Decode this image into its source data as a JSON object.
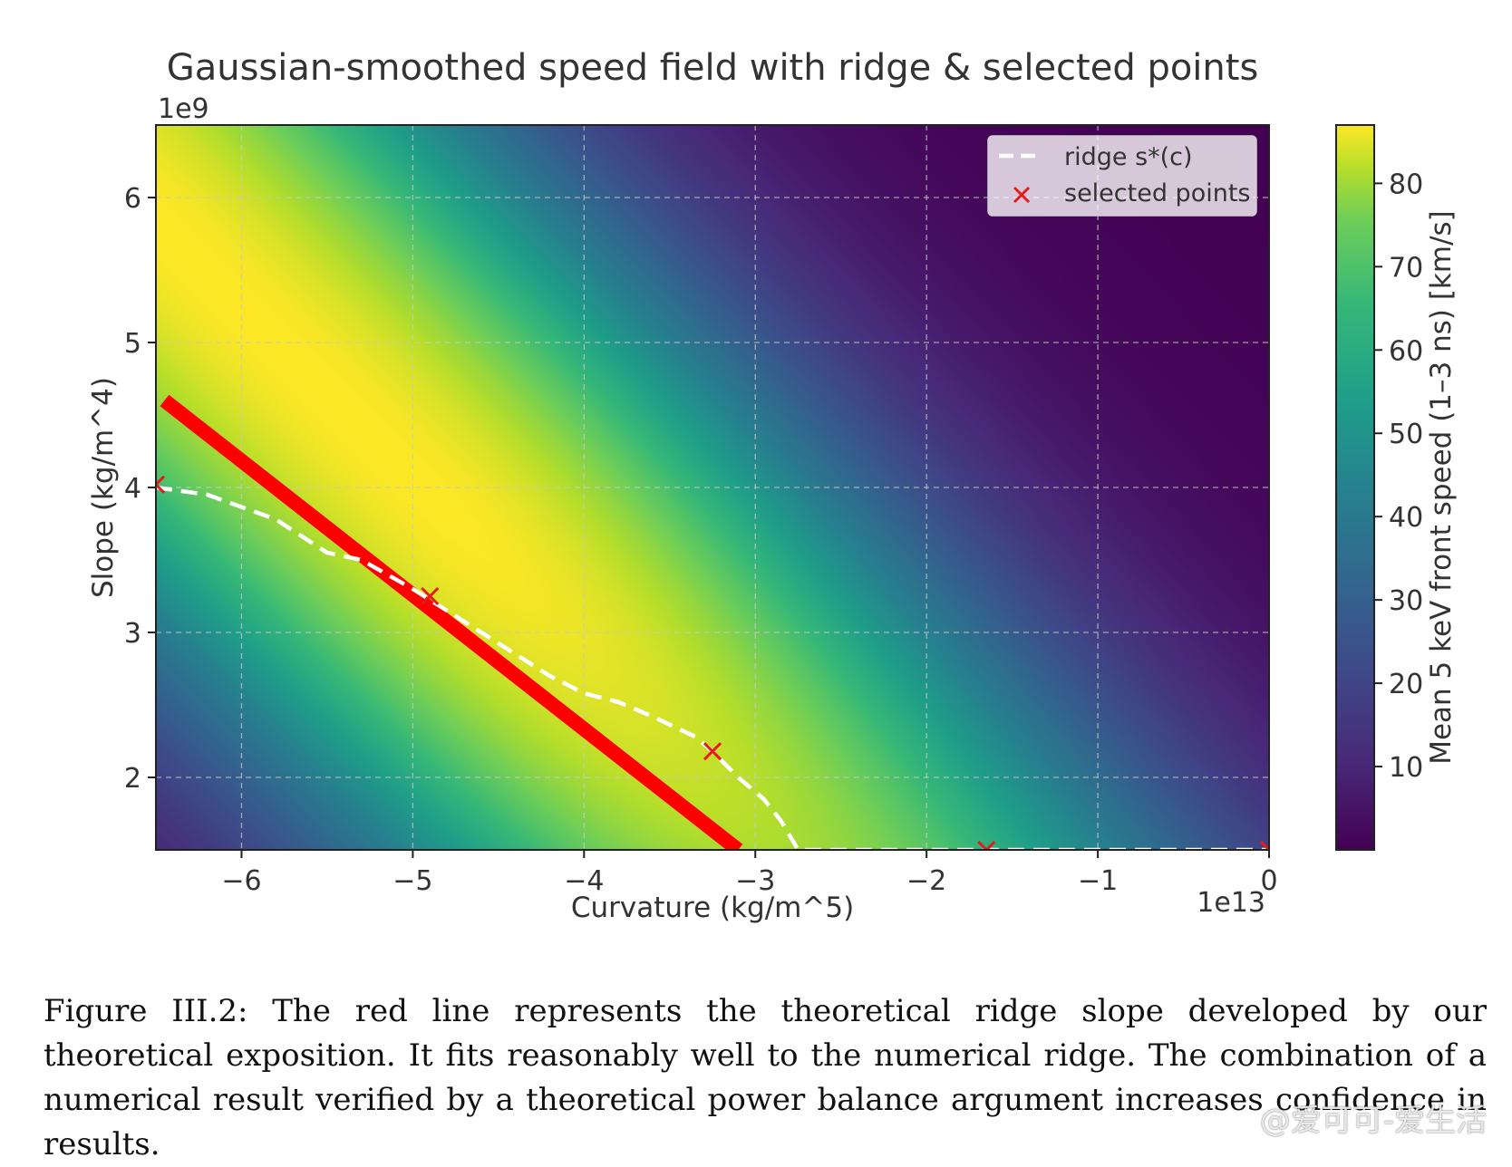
{
  "chart_data": {
    "type": "heatmap",
    "title": "Gaussian-smoothed speed field with ridge & selected points",
    "xlabel": "Curvature (kg/m^5)",
    "ylabel": "Slope (kg/m^4)",
    "x_multiplier": "1e13",
    "y_multiplier": "1e9",
    "xlim": [
      -6.5,
      0
    ],
    "ylim": [
      1.5,
      6.5
    ],
    "x_ticks": [
      -6,
      -5,
      -4,
      -3,
      -2,
      -1,
      0
    ],
    "x_tick_labels": [
      "−6",
      "−5",
      "−4",
      "−3",
      "−2",
      "−1",
      "0"
    ],
    "y_ticks": [
      2,
      3,
      4,
      5,
      6
    ],
    "y_tick_labels": [
      "2",
      "3",
      "4",
      "5",
      "6"
    ],
    "grid": true,
    "colorbar": {
      "label": "Mean 5 keV front speed (1–3 ns) [km/s]",
      "range": [
        0,
        87
      ],
      "ticks": [
        10,
        20,
        30,
        40,
        50,
        60,
        70,
        80
      ],
      "tick_labels": [
        "10",
        "20",
        "30",
        "40",
        "50",
        "60",
        "70",
        "80"
      ],
      "colormap": "viridis"
    },
    "legend": {
      "position": "top-right",
      "entries": [
        {
          "label": "ridge s*(c)",
          "style": "white-dashed-line"
        },
        {
          "label": "selected points",
          "style": "red-x-marker"
        }
      ]
    },
    "ridge": {
      "name": "ridge s*(c)",
      "x": [
        -6.5,
        -6.2,
        -5.8,
        -5.5,
        -5.3,
        -5.0,
        -4.8,
        -4.6,
        -4.4,
        -4.2,
        -4.0,
        -3.8,
        -3.6,
        -3.35,
        -3.25,
        -3.1,
        -2.95,
        -2.85,
        -2.75,
        -2.5,
        -2.0,
        -1.5,
        -1.0,
        -0.5,
        0.0
      ],
      "y": [
        4.0,
        3.95,
        3.78,
        3.55,
        3.5,
        3.3,
        3.15,
        3.0,
        2.85,
        2.7,
        2.58,
        2.52,
        2.42,
        2.28,
        2.18,
        2.0,
        1.85,
        1.7,
        1.5,
        1.5,
        1.5,
        1.5,
        1.5,
        1.5,
        1.5
      ]
    },
    "selected_points": {
      "name": "selected points",
      "x": [
        -6.5,
        -4.9,
        -3.25,
        -1.65,
        0.0
      ],
      "y": [
        4.02,
        3.25,
        2.18,
        1.5,
        1.5
      ]
    },
    "theory_line": {
      "name": "theoretical ridge slope",
      "color": "#ff0000",
      "x": [
        -6.45,
        -3.1
      ],
      "y": [
        4.6,
        1.5
      ]
    },
    "field_model": {
      "description": "speed peaks along the ridge near the upper-left, decreasing away from it",
      "peak_value": 87
    }
  },
  "caption": {
    "text": "Figure III.2: The red line represents the theoretical ridge slope developed by our theoretical exposition. It fits reasonably well to the numerical ridge. The combination of a numerical result verified by a theoretical power balance argument increases confidence in results."
  },
  "watermark": {
    "text": "@爱可可-爱生活"
  },
  "colors": {
    "selected_marker": "#e8191b",
    "ridge": "#ffffff",
    "grid": "#c8c8c8"
  }
}
